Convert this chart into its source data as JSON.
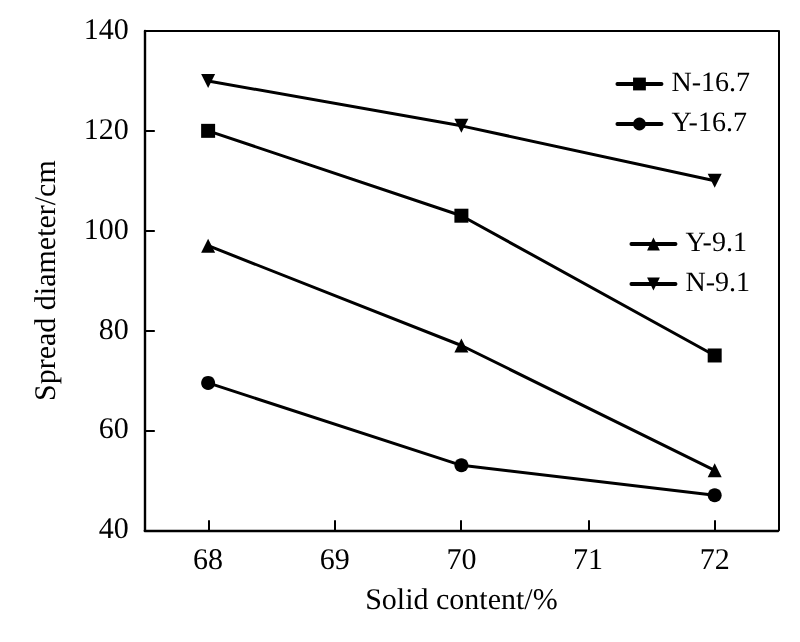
{
  "chart_data": {
    "type": "line",
    "xlabel": "Solid content/%",
    "ylabel": "Spread diameter/cm",
    "x": [
      68,
      70,
      72
    ],
    "series": [
      {
        "name": "N-16.7",
        "color": "#000000",
        "marker": "square",
        "values": [
          120,
          103,
          75
        ]
      },
      {
        "name": "Y-16.7",
        "color": "#000000",
        "marker": "circle",
        "values": [
          69.5,
          53,
          47
        ]
      },
      {
        "name": "Y-9.1",
        "color": "#000000",
        "marker": "triangle",
        "values": [
          97,
          77,
          52
        ]
      },
      {
        "name": "N-9.1",
        "color": "#000000",
        "marker": "triangle_down",
        "values": [
          130,
          121,
          110
        ]
      }
    ],
    "xlim": [
      67.5,
      72.5
    ],
    "xticks": [
      68,
      69,
      70,
      71,
      72
    ],
    "ylim": [
      40,
      140
    ],
    "yticks": [
      40,
      60,
      80,
      100,
      120,
      140
    ],
    "grid": false,
    "legend": "top right",
    "line_style": "solid"
  }
}
